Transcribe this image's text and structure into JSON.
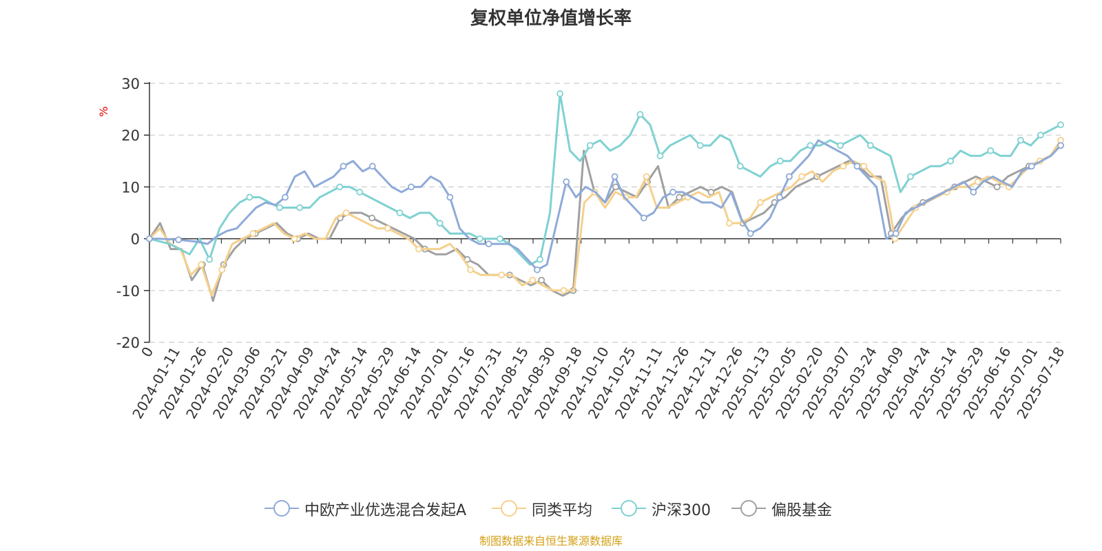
{
  "title": "复权单位净值增长率",
  "source": "制图数据来自恒生聚源数据库",
  "colors": {
    "fund": "#8eaad8",
    "peer": "#f5d08c",
    "hs300": "#7fd1d1",
    "equity": "#a0a0a0",
    "axis": "#333333",
    "grid": "#cccccc",
    "ylabel": "#e00000"
  },
  "chart_data": {
    "type": "line",
    "title": "复权单位净值增长率",
    "ylabel": "%",
    "ylim": [
      -20,
      30
    ],
    "yticks": [
      "30",
      "20",
      "10",
      "0",
      "-10",
      "-20"
    ],
    "xlabel": "",
    "x_tick_labels": [
      "0",
      "2024-01-11",
      "2024-01-26",
      "2024-02-20",
      "2024-03-06",
      "2024-03-21",
      "2024-04-09",
      "2024-04-24",
      "2024-05-14",
      "2024-05-29",
      "2024-06-14",
      "2024-07-01",
      "2024-07-16",
      "2024-07-31",
      "2024-08-15",
      "2024-08-30",
      "2024-09-18",
      "2024-10-10",
      "2024-10-25",
      "2024-11-11",
      "2024-11-26",
      "2024-12-11",
      "2024-12-26",
      "2025-01-13",
      "2025-02-05",
      "2025-02-20",
      "2025-03-07",
      "2025-03-24",
      "2025-04-09",
      "2025-04-24",
      "2025-05-14",
      "2025-05-29",
      "2025-06-16",
      "2025-07-01",
      "2025-07-18"
    ],
    "grid": true,
    "legend_position": "bottom",
    "series": [
      {
        "name": "中欧产业优选混合发起A",
        "values": [
          0,
          0,
          -0.1,
          -0.2,
          -0.4,
          -0.6,
          -1,
          0.5,
          1.5,
          2,
          4,
          6,
          7,
          6.5,
          8,
          12,
          13,
          10,
          11,
          12,
          14,
          15,
          13,
          14,
          12,
          10,
          9,
          10,
          10,
          12,
          11,
          8,
          2,
          0,
          -1,
          -1,
          -1,
          -1,
          -2,
          -4,
          -6,
          -5,
          3,
          11,
          8,
          10,
          9,
          7,
          12,
          8,
          6,
          4,
          5,
          8,
          9,
          9,
          8,
          7,
          7,
          6,
          9,
          4,
          1,
          2,
          4,
          8,
          12,
          14,
          16,
          19,
          18,
          17,
          16,
          14,
          12,
          10,
          0,
          1,
          5,
          6,
          7,
          8,
          9,
          10,
          11,
          9,
          11,
          12,
          11,
          10,
          13,
          14,
          15,
          16,
          18
        ],
        "markers": [
          0,
          3,
          14,
          20,
          23,
          27,
          31,
          35,
          40,
          43,
          48,
          51,
          54,
          62,
          65,
          66,
          73,
          77,
          85,
          91,
          94
        ]
      },
      {
        "name": "同类平均",
        "values": [
          0,
          2,
          -1,
          -2,
          -7,
          -5,
          -11,
          -6,
          -1,
          0,
          1,
          2,
          3,
          1,
          0,
          1,
          0,
          0,
          4,
          5,
          4,
          3,
          2,
          2,
          1,
          0,
          -2,
          -2,
          -2,
          -1,
          -3,
          -6,
          -7,
          -7,
          -7,
          -7,
          -9,
          -8,
          -9,
          -10,
          -10,
          -10,
          7,
          9,
          6,
          9,
          8,
          8,
          12,
          6,
          6,
          7,
          8,
          9,
          8,
          9,
          3,
          3,
          4,
          7,
          8,
          9,
          10,
          12,
          13,
          11,
          13,
          14,
          15,
          14,
          12,
          11,
          0,
          3,
          6,
          7,
          8,
          9,
          10,
          10,
          11,
          12,
          11,
          10,
          12,
          14,
          15,
          16,
          19
        ],
        "markers": [
          0,
          5,
          7,
          10,
          14,
          19,
          23,
          26,
          31,
          34,
          37,
          40,
          43,
          46,
          48,
          52,
          56,
          59,
          63,
          67,
          69,
          72,
          74,
          77,
          80,
          83,
          86,
          88
        ]
      },
      {
        "name": "沪深300",
        "values": [
          0,
          -0.5,
          -1,
          -2,
          -3,
          0,
          -4,
          2,
          5,
          7,
          8,
          8,
          7,
          6,
          6,
          6,
          6,
          8,
          9,
          10,
          10,
          9,
          8,
          7,
          6,
          5,
          4,
          5,
          5,
          3,
          1,
          1,
          1,
          0,
          0,
          0,
          -1,
          -3,
          -5,
          -4,
          5,
          28,
          17,
          15,
          18,
          19,
          17,
          18,
          20,
          24,
          22,
          16,
          18,
          19,
          20,
          18,
          18,
          20,
          19,
          14,
          13,
          12,
          14,
          15,
          15,
          17,
          18,
          18,
          19,
          18,
          19,
          20,
          18,
          17,
          16,
          9,
          12,
          13,
          14,
          14,
          15,
          17,
          16,
          16,
          17,
          16,
          16,
          19,
          18,
          20,
          21,
          22
        ],
        "markers": [
          0,
          6,
          10,
          13,
          15,
          19,
          21,
          25,
          29,
          33,
          35,
          39,
          41,
          44,
          49,
          51,
          55,
          59,
          63,
          66,
          69,
          72,
          76,
          80,
          84,
          87,
          89,
          91
        ]
      },
      {
        "name": "偏股基金",
        "values": [
          0,
          3,
          -2,
          -2,
          -8,
          -5,
          -12,
          -5,
          -2,
          0,
          1,
          2,
          3,
          1,
          0,
          1,
          0,
          0,
          4,
          5,
          5,
          4,
          3,
          2,
          1,
          0,
          -2,
          -3,
          -3,
          -2,
          -4,
          -5,
          -7,
          -7,
          -7,
          -8,
          -9,
          -8,
          -10,
          -11,
          -10,
          17,
          9,
          7,
          10,
          9,
          8,
          11,
          14,
          6,
          8,
          9,
          10,
          9,
          10,
          9,
          3,
          4,
          5,
          7,
          8,
          10,
          11,
          12,
          13,
          14,
          15,
          14,
          12,
          12,
          1,
          4,
          6,
          7,
          8,
          9,
          10,
          11,
          12,
          11,
          10,
          12,
          13,
          14,
          15,
          16,
          18
        ],
        "markers": [
          0,
          5,
          7,
          10,
          14,
          18,
          21,
          26,
          30,
          34,
          37,
          40,
          44,
          47,
          50,
          53,
          56,
          59,
          63,
          67,
          70,
          73,
          76,
          80,
          83,
          86
        ]
      }
    ]
  },
  "legend": [
    {
      "label": "中欧产业优选混合发起A"
    },
    {
      "label": "同类平均"
    },
    {
      "label": "沪深300"
    },
    {
      "label": "偏股基金"
    }
  ]
}
